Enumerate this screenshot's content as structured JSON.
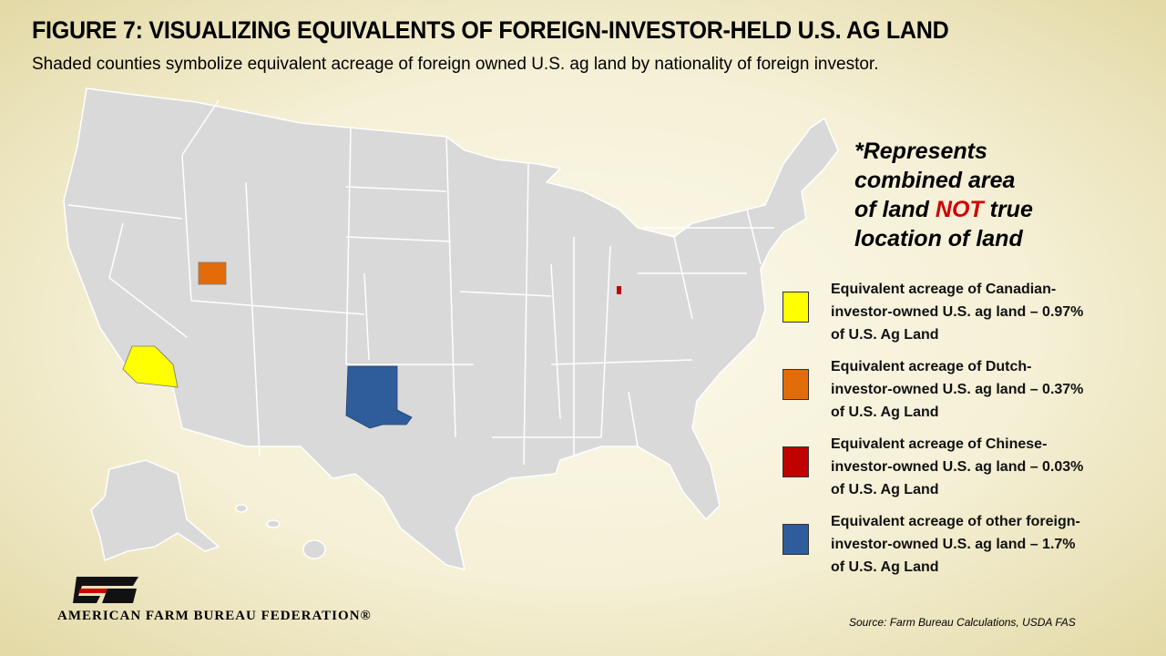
{
  "header": {
    "title": "FIGURE 7: VISUALIZING EQUIVALENTS OF FOREIGN-INVESTOR-HELD U.S. AG LAND",
    "subtitle": "Shaded counties symbolize equivalent acreage of foreign owned U.S. ag land by nationality of foreign investor."
  },
  "note": {
    "lines": [
      "*Represents",
      "combined area"
    ],
    "emphasis_before": "of land",
    "emphasis": "NOT",
    "emphasis_after": "true",
    "last_line": "location of land"
  },
  "legend": [
    {
      "color": "#ffff00",
      "lines": [
        "Equivalent acreage of Canadian-",
        "investor-owned U.S. ag land – 0.97%",
        "of U.S. Ag Land"
      ]
    },
    {
      "color": "#e36c0a",
      "lines": [
        "Equivalent acreage of Dutch-",
        "investor-owned U.S. ag land – 0.37%",
        "of U.S. Ag Land"
      ]
    },
    {
      "color": "#c00000",
      "lines": [
        "Equivalent acreage of Chinese-",
        "investor-owned U.S. ag land – 0.03%",
        "of U.S. Ag Land"
      ]
    },
    {
      "color": "#2f5d9b",
      "lines": [
        "Equivalent acreage of other foreign-",
        "investor-owned U.S. ag land – 1.7%",
        "of U.S. Ag Land"
      ]
    }
  ],
  "logo": {
    "text": "AMERICAN FARM BUREAU FEDERATION®"
  },
  "source": "Source: Farm Bureau Calculations, USDA FAS"
}
